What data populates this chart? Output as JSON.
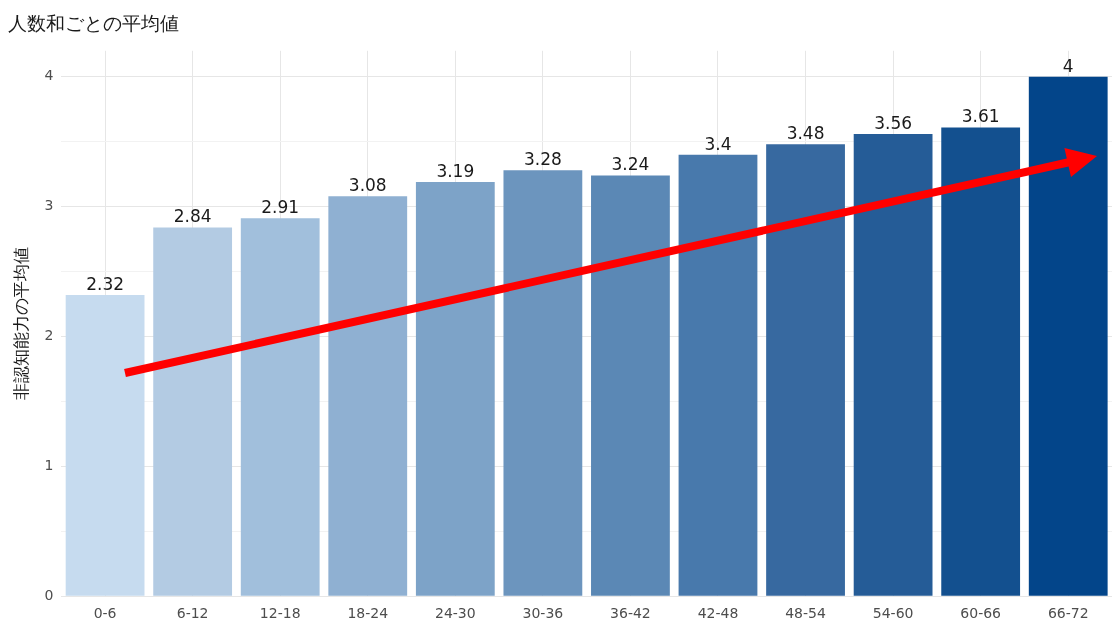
{
  "chart_data": {
    "type": "bar",
    "title": "人数和ごとの平均値",
    "ylabel": "非認知能力の平均値",
    "categories": [
      "0-6",
      "6-12",
      "12-18",
      "18-24",
      "24-30",
      "30-36",
      "36-42",
      "42-48",
      "48-54",
      "54-60",
      "60-66",
      "66-72"
    ],
    "values": [
      2.32,
      2.84,
      2.91,
      3.08,
      3.19,
      3.28,
      3.24,
      3.4,
      3.48,
      3.56,
      3.61,
      4
    ],
    "colors": [
      "#c6dbef",
      "#b3cbe3",
      "#a1bfdc",
      "#8fb0d2",
      "#7da3c8",
      "#6c95be",
      "#5b88b5",
      "#4879ac",
      "#3769a0",
      "#255c97",
      "#13508f",
      "#03458a"
    ],
    "ylim": [
      0,
      4.2
    ],
    "yticks": [
      0,
      {
        "value": 0.5,
        "label": null
      },
      1,
      {
        "value": 1.5,
        "label": null
      },
      2,
      {
        "value": 2.5,
        "label": null
      },
      3,
      {
        "value": 3.5,
        "label": null
      },
      4
    ],
    "grid": true,
    "data_labels": true
  }
}
